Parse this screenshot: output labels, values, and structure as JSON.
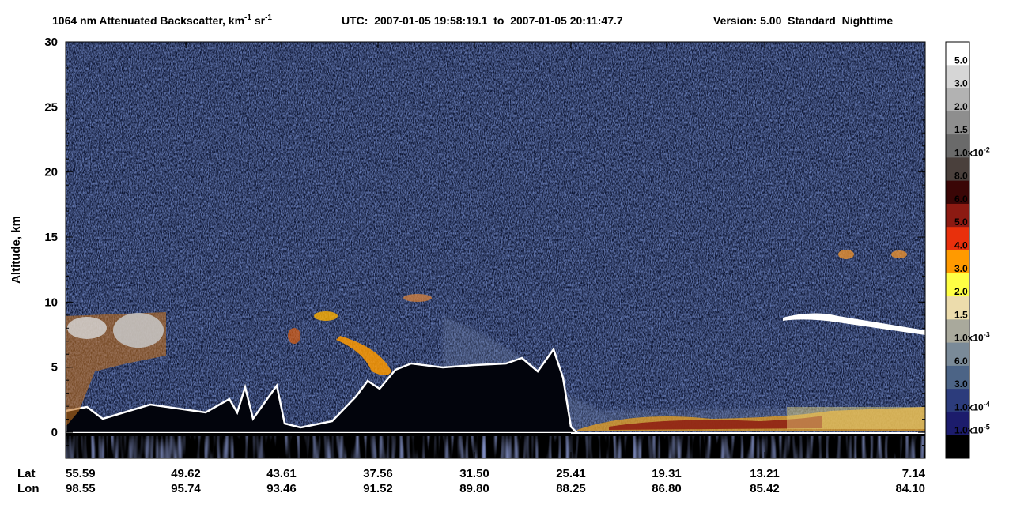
{
  "chart_data": {
    "type": "heatmap",
    "title": {
      "text": "1064 nm Attenuated Backscatter, km",
      "exp1": "-1",
      "unit2": " sr",
      "exp2": "-1"
    },
    "utc": "UTC:  2007-01-05 19:58:19.1  to  2007-01-05 20:11:47.7",
    "version": "Version: 5.00  Standard  Nighttime",
    "y_label": "Altitude, km",
    "ylim": [
      -2,
      30
    ],
    "yticks": [
      0,
      5,
      10,
      15,
      20,
      25,
      30
    ],
    "x_rows": [
      "Lat",
      "Lon"
    ],
    "lat": [
      "55.59",
      "49.62",
      "43.61",
      "37.56",
      "31.50",
      "25.41",
      "19.31",
      "13.21",
      "7.14"
    ],
    "lon": [
      "98.55",
      "95.74",
      "93.46",
      "91.52",
      "89.80",
      "88.25",
      "86.80",
      "85.42",
      "84.10"
    ],
    "colorbar": {
      "colors": [
        "#ffffff",
        "#d6d6d6",
        "#b2b2b2",
        "#8e8e8e",
        "#6a6a6a",
        "#4a403c",
        "#3a0606",
        "#8c1a12",
        "#e8300c",
        "#ff9a00",
        "#ffff44",
        "#ecdcac",
        "#a9a99c",
        "#7a8a98",
        "#4c6486",
        "#2c3c7c",
        "#1c1c6c",
        "#000000"
      ],
      "labels": [
        {
          "text": "5.0"
        },
        {
          "text": "3.0"
        },
        {
          "text": "2.0"
        },
        {
          "text": "1.5"
        },
        {
          "text": "1.0x10",
          "sup": "-2"
        },
        {
          "text": "8.0"
        },
        {
          "text": "6.0"
        },
        {
          "text": "5.0"
        },
        {
          "text": "4.0"
        },
        {
          "text": "3.0"
        },
        {
          "text": "2.0"
        },
        {
          "text": "1.5"
        },
        {
          "text": "1.0x10",
          "sup": "-3"
        },
        {
          "text": "6.0"
        },
        {
          "text": "3.0"
        },
        {
          "text": "1.0x10",
          "sup": "-4"
        },
        {
          "text": "1.0x10",
          "sup": "-5"
        }
      ]
    }
  }
}
